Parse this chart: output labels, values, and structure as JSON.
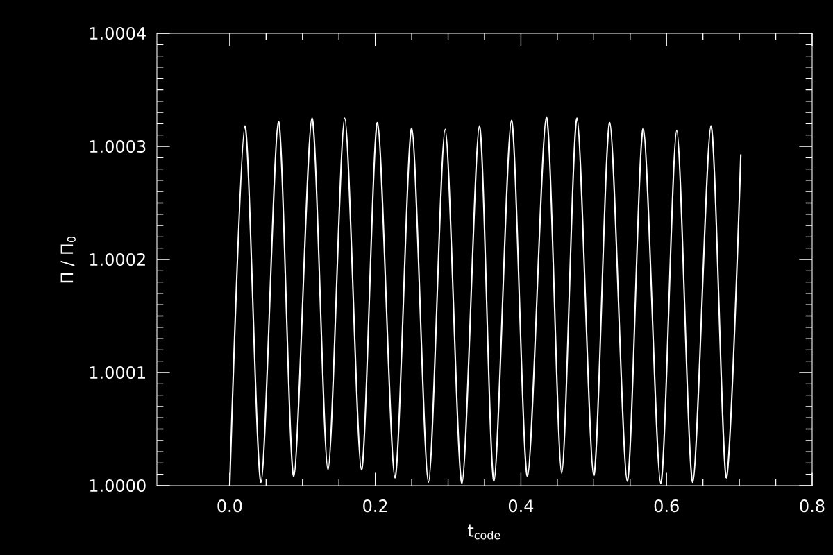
{
  "chart_data": {
    "type": "line",
    "xlabel": "t$_{code}$",
    "ylabel": "Π / Π$_{0}$",
    "xlim": [
      -0.1,
      0.8
    ],
    "ylim": [
      1.0,
      1.0004
    ],
    "xticks": [
      {
        "value": 0,
        "label": "0.0"
      },
      0.2,
      0.4,
      0.6,
      0.8
    ],
    "yticks": [
      {
        "value": 1.0,
        "label": "1.0000"
      },
      {
        "value": 1.0001,
        "label": "1.0001"
      },
      {
        "value": 1.0002,
        "label": "1.0002"
      },
      {
        "value": 1.0003,
        "label": "1.0003"
      },
      {
        "value": 1.0004,
        "label": "1.0004"
      }
    ],
    "series": [
      {
        "color": "#ffffff",
        "x": [
          0.0,
          0.021,
          0.043,
          0.067,
          0.088,
          0.113,
          0.135,
          0.158,
          0.181,
          0.203,
          0.227,
          0.25,
          0.273,
          0.296,
          0.319,
          0.343,
          0.363,
          0.387,
          0.409,
          0.435,
          0.456,
          0.477,
          0.5,
          0.522,
          0.546,
          0.568,
          0.592,
          0.614,
          0.636,
          0.661,
          0.682,
          0.702
        ],
        "values": [
          1.0,
          1.000318,
          1.000003,
          1.000322,
          1.000008,
          1.000325,
          1.000014,
          1.000325,
          1.000014,
          1.000321,
          1.000007,
          1.000316,
          1.000003,
          1.000315,
          1.000002,
          1.000318,
          1.000004,
          1.000323,
          1.000008,
          1.000326,
          1.000011,
          1.000325,
          1.000009,
          1.000321,
          1.000004,
          1.000316,
          1.000002,
          1.000314,
          1.000003,
          1.000318,
          1.000007,
          1.000293
        ]
      }
    ]
  }
}
